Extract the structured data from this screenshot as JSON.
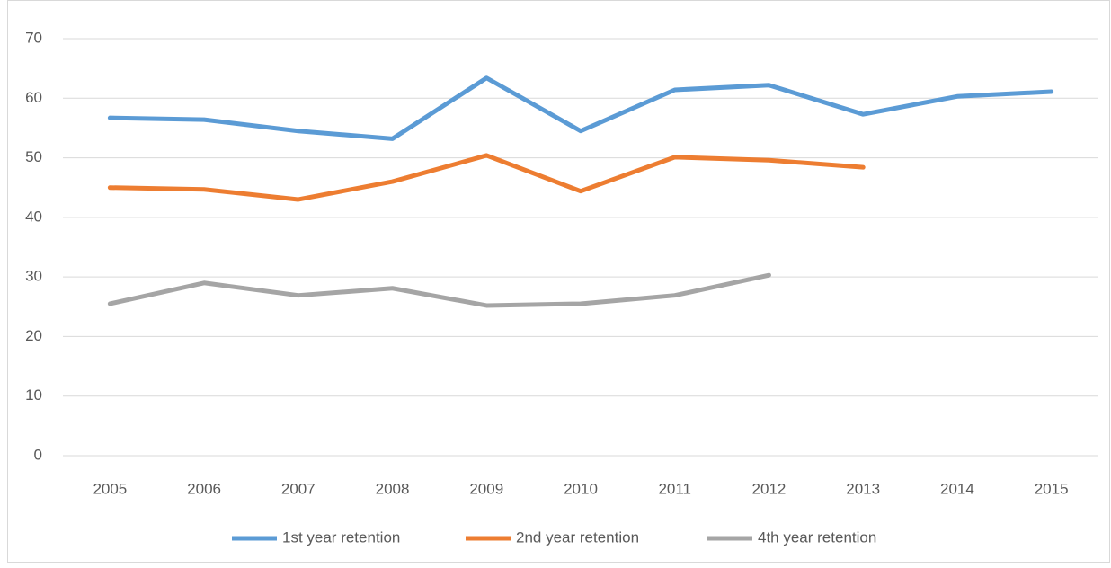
{
  "chart_data": {
    "type": "line",
    "categories": [
      "2005",
      "2006",
      "2007",
      "2008",
      "2009",
      "2010",
      "2011",
      "2012",
      "2013",
      "2014",
      "2015"
    ],
    "series": [
      {
        "name": "1st year retention",
        "color": "#5b9bd5",
        "values": [
          56.7,
          56.4,
          54.5,
          53.2,
          63.4,
          54.5,
          61.4,
          62.2,
          57.3,
          60.3,
          61.1
        ]
      },
      {
        "name": "2nd year retention",
        "color": "#ed7d31",
        "values": [
          45.0,
          44.7,
          43.0,
          46.0,
          50.4,
          44.4,
          50.1,
          49.6,
          48.4,
          null,
          null
        ]
      },
      {
        "name": "4th year retention",
        "color": "#a5a5a5",
        "values": [
          25.5,
          29.0,
          26.9,
          28.1,
          25.2,
          25.5,
          26.9,
          30.3,
          null,
          null,
          null
        ]
      }
    ],
    "ylim": [
      0,
      70
    ],
    "yticks": [
      0,
      10,
      20,
      30,
      40,
      50,
      60,
      70
    ],
    "grid": true,
    "legend": "bottom"
  }
}
